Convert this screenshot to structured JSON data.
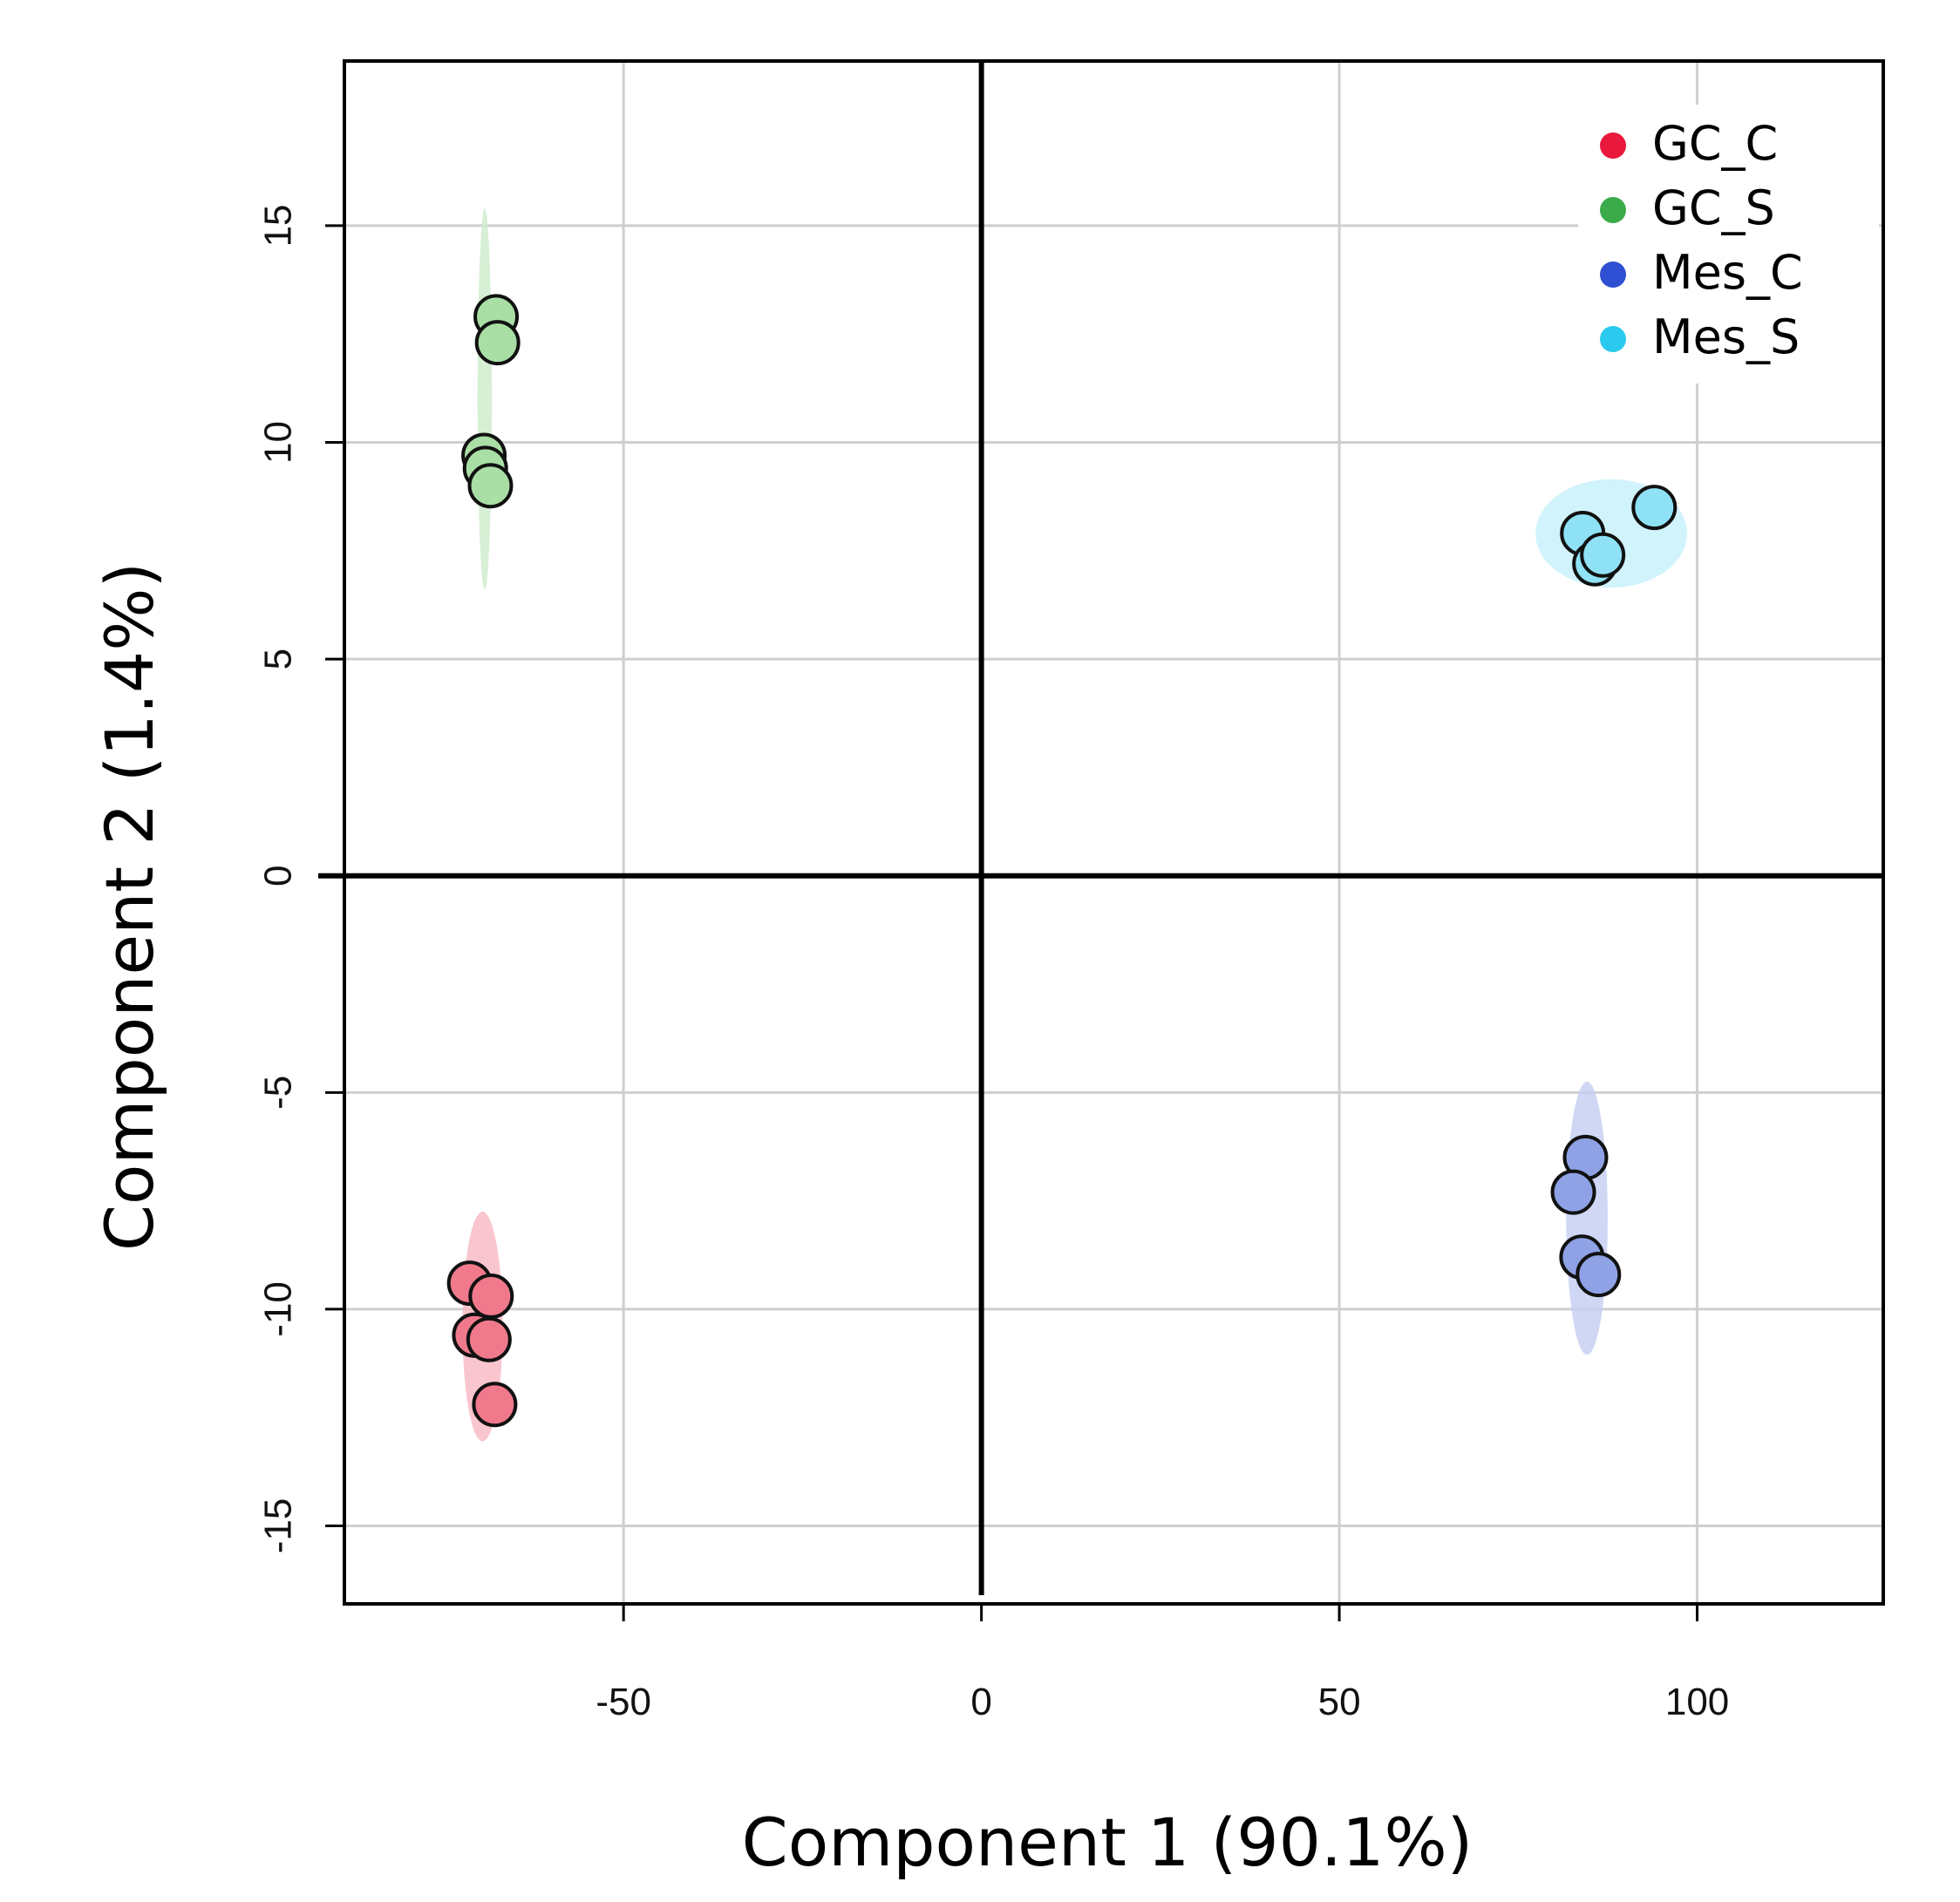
{
  "chart_data": {
    "type": "scatter",
    "xlabel": "Component 1 (90.1%)",
    "ylabel": "Component 2 (1.4%)",
    "xlim": [
      -89,
      126
    ],
    "ylim": [
      -16.8,
      18.8
    ],
    "xticks": [
      -50,
      0,
      50,
      100
    ],
    "yticks": [
      -15,
      -10,
      -5,
      0,
      5,
      10,
      15
    ],
    "grid": true,
    "legend_position": "top-right",
    "series": [
      {
        "name": "GC_C",
        "color": "#e8193c",
        "fill": "#f07a8c",
        "ellipse_color": "#f7b7c2",
        "points": [
          [
            -71.5,
            -9.4
          ],
          [
            -68.5,
            -9.7
          ],
          [
            -70.8,
            -10.6
          ],
          [
            -68.8,
            -10.7
          ],
          [
            -68.0,
            -12.2
          ]
        ],
        "ellipse": {
          "cx": -69.7,
          "cy": -10.4,
          "rx": 2.8,
          "ry": 2.65,
          "rotation_deg": 0
        }
      },
      {
        "name": "GC_S",
        "color": "#3aaa4a",
        "fill": "#a9dfa5",
        "ellipse_color": "#cdebcb",
        "points": [
          [
            -67.8,
            12.9
          ],
          [
            -67.6,
            12.3
          ],
          [
            -69.5,
            9.7
          ],
          [
            -69.3,
            9.4
          ],
          [
            -68.6,
            9.0
          ]
        ],
        "ellipse": {
          "cx": -69.4,
          "cy": 11.0,
          "rx": 1.0,
          "ry": 4.4,
          "rotation_deg": 0
        }
      },
      {
        "name": "Mes_C",
        "color": "#2e4fd1",
        "fill": "#8fa2e6",
        "ellipse_color": "#c3cdf2",
        "points": [
          [
            84.4,
            -6.5
          ],
          [
            82.7,
            -7.3
          ],
          [
            83.9,
            -8.8
          ],
          [
            86.2,
            -9.2
          ]
        ],
        "ellipse": {
          "cx": 84.6,
          "cy": -7.9,
          "rx": 2.9,
          "ry": 3.15,
          "rotation_deg": 0
        }
      },
      {
        "name": "Mes_S",
        "color": "#2bc9ef",
        "fill": "#8fe2f6",
        "ellipse_color": "#c6f0fb",
        "points": [
          [
            84.0,
            7.9
          ],
          [
            85.7,
            7.2
          ],
          [
            86.8,
            7.4
          ],
          [
            94.0,
            8.5
          ]
        ],
        "ellipse": {
          "cx": 88.0,
          "cy": 7.9,
          "rx": 10.6,
          "ry": 1.25,
          "rotation_deg": 0
        }
      }
    ]
  }
}
